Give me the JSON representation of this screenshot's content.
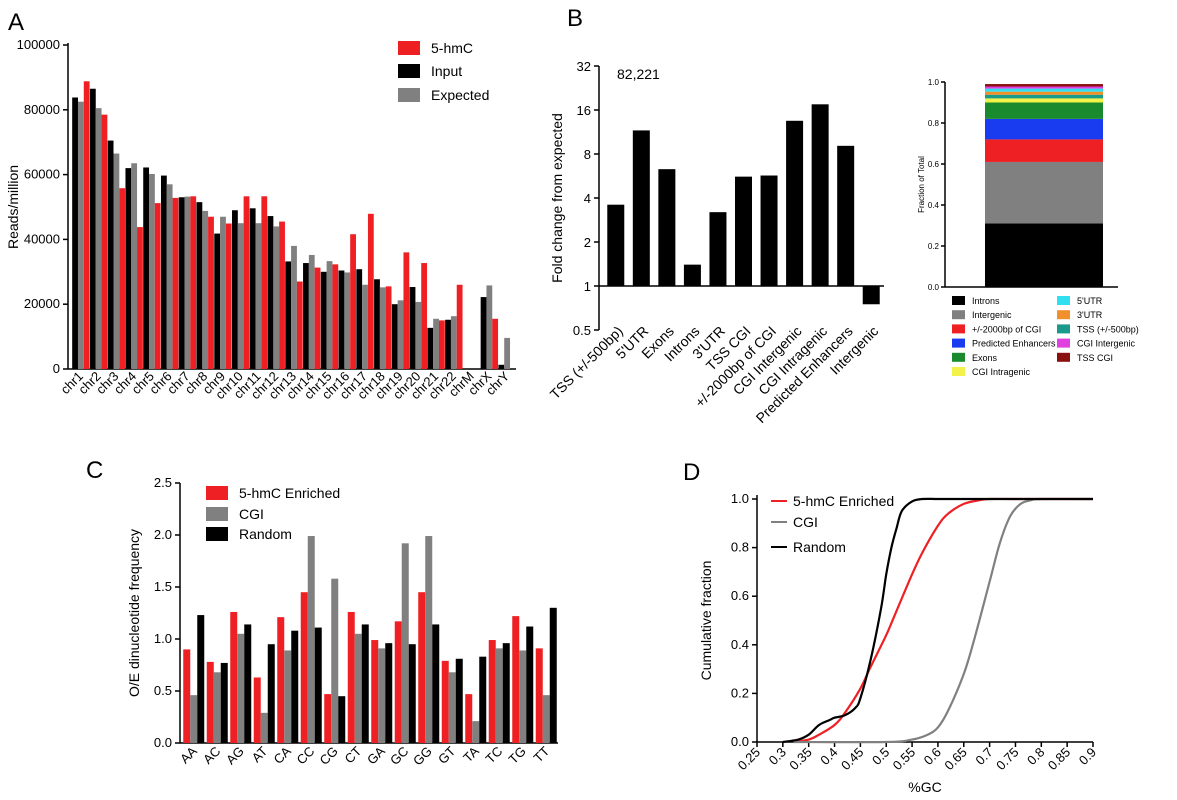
{
  "panel_letters": {
    "A": "A",
    "B": "B",
    "C": "C",
    "D": "D"
  },
  "colors": {
    "red": "#ee2024",
    "black": "#000000",
    "gray": "#808080"
  },
  "chart_data": [
    {
      "id": "A",
      "type": "bar",
      "ylabel": "Reads/million",
      "ylim": [
        0,
        100000
      ],
      "yticks": [
        "0",
        "20000",
        "40000",
        "60000",
        "80000",
        "100000"
      ],
      "categories": [
        "chr1",
        "chr2",
        "chr3",
        "chr4",
        "chr5",
        "chr6",
        "chr7",
        "chr8",
        "chr9",
        "chr10",
        "chr11",
        "chr12",
        "chr13",
        "chr14",
        "chr15",
        "chr16",
        "chr17",
        "chr18",
        "chr19",
        "chr20",
        "chr21",
        "chr22",
        "chrM",
        "chrX",
        "chrY"
      ],
      "series": [
        {
          "name": "Input",
          "color": "#000000",
          "values": [
            83800,
            86500,
            70500,
            62000,
            62200,
            59700,
            53000,
            51500,
            41800,
            49000,
            49600,
            47200,
            33200,
            32700,
            30000,
            30400,
            30800,
            27700,
            20000,
            25300,
            12700,
            15200,
            0,
            22200,
            1300
          ]
        },
        {
          "name": "Expected",
          "color": "#808080",
          "values": [
            82500,
            80500,
            66500,
            63500,
            60200,
            57000,
            53200,
            48800,
            47000,
            45000,
            45000,
            44000,
            38000,
            35200,
            33300,
            29800,
            26000,
            25200,
            21200,
            20700,
            15500,
            16300,
            0,
            25800,
            9600
          ]
        },
        {
          "name": "5-hmC",
          "color": "#ee2024",
          "values": [
            88800,
            78500,
            55800,
            43800,
            51200,
            52800,
            53300,
            47000,
            44900,
            53300,
            53300,
            45500,
            27000,
            31300,
            32300,
            41600,
            47900,
            25500,
            36000,
            32700,
            15000,
            26000,
            0,
            15500,
            0
          ]
        }
      ],
      "legend": [
        "5-hmC",
        "Input",
        "Expected"
      ],
      "legend_placement": "top-right"
    },
    {
      "id": "B-left",
      "type": "bar",
      "ylabel": "Fold change from expected",
      "yscale": "log2",
      "ylim": [
        0.5,
        32
      ],
      "yticks": [
        "0.5",
        "1",
        "2",
        "4",
        "8",
        "16",
        "32"
      ],
      "annotation": "82,221",
      "categories": [
        "TSS (+/-500bp)",
        "5'UTR",
        "Exons",
        "Introns",
        "3'UTR",
        "TSS CGI",
        "+/-2000bp of CGI",
        "CGI Intergenic",
        "CGI Intragenic",
        "Predicted Enhancers",
        "Intergenic"
      ],
      "values": [
        3.6,
        11.6,
        6.3,
        1.4,
        3.2,
        5.6,
        5.7,
        13.5,
        17.5,
        9.1,
        0.75
      ]
    },
    {
      "id": "B-right",
      "type": "bar",
      "subtype": "stacked",
      "ylabel": "Fraction of Total",
      "ylim": [
        0,
        1.0
      ],
      "yticks": [
        "0.0",
        "0.2",
        "0.4",
        "0.6",
        "0.8",
        "1.0"
      ],
      "segments": [
        {
          "name": "Introns",
          "color": "#000000",
          "value": 0.31
        },
        {
          "name": "Intergenic",
          "color": "#808080",
          "value": 0.3
        },
        {
          "name": "+/-2000bp of CGI",
          "color": "#ee2024",
          "value": 0.11
        },
        {
          "name": "Predicted Enhancers",
          "color": "#1a3cf0",
          "value": 0.1
        },
        {
          "name": "Exons",
          "color": "#1a8a2e",
          "value": 0.08
        },
        {
          "name": "CGI Intragenic",
          "color": "#f2f24a",
          "value": 0.02
        },
        {
          "name": "TSS (+/-500bp)",
          "color": "#1a9a8a",
          "value": 0.018
        },
        {
          "name": "3'UTR",
          "color": "#f0902a",
          "value": 0.015
        },
        {
          "name": "5'UTR",
          "color": "#30e0f0",
          "value": 0.015
        },
        {
          "name": "CGI Intergenic",
          "color": "#e040e0",
          "value": 0.01
        },
        {
          "name": "TSS CGI",
          "color": "#8a1010",
          "value": 0.012
        }
      ],
      "legend_left": [
        "Introns",
        "Intergenic",
        "+/-2000bp of CGI",
        "Predicted Enhancers",
        "Exons",
        "CGI Intragenic"
      ],
      "legend_right": [
        "5'UTR",
        "3'UTR",
        "TSS (+/-500bp)",
        "CGI Intergenic",
        "TSS CGI"
      ]
    },
    {
      "id": "C",
      "type": "bar",
      "ylabel": "O/E dinucleotide frequency",
      "ylim": [
        0,
        2.5
      ],
      "yticks": [
        "0.0",
        "0.5",
        "1.0",
        "1.5",
        "2.0",
        "2.5"
      ],
      "categories": [
        "AA",
        "AC",
        "AG",
        "AT",
        "CA",
        "CC",
        "CG",
        "CT",
        "GA",
        "GC",
        "GG",
        "GT",
        "TA",
        "TC",
        "TG",
        "TT"
      ],
      "series": [
        {
          "name": "5-hmC Enriched",
          "color": "#ee2024",
          "values": [
            0.9,
            0.78,
            1.26,
            0.63,
            1.21,
            1.45,
            0.47,
            1.26,
            0.99,
            1.17,
            1.45,
            0.79,
            0.47,
            0.99,
            1.22,
            0.91
          ]
        },
        {
          "name": "CGI",
          "color": "#808080",
          "values": [
            0.46,
            0.68,
            1.05,
            0.29,
            0.89,
            1.99,
            1.58,
            1.05,
            0.91,
            1.92,
            1.99,
            0.68,
            0.21,
            0.91,
            0.89,
            0.46
          ]
        },
        {
          "name": "Random",
          "color": "#000000",
          "values": [
            1.23,
            0.77,
            1.14,
            0.95,
            1.08,
            1.11,
            0.45,
            1.14,
            0.96,
            0.95,
            1.14,
            0.81,
            0.83,
            0.96,
            1.12,
            1.3
          ]
        }
      ],
      "legend": [
        "5-hmC Enriched",
        "CGI",
        "Random"
      ],
      "legend_placement": "top-left"
    },
    {
      "id": "D",
      "type": "line",
      "xlabel": "%GC",
      "ylabel": "Cumulative fraction",
      "xlim": [
        0.25,
        0.9
      ],
      "ylim": [
        0,
        1.0
      ],
      "xticks": [
        "0.25",
        "0.3",
        "0.35",
        "0.4",
        "0.45",
        "0.5",
        "0.55",
        "0.6",
        "0.65",
        "0.7",
        "0.75",
        "0.8",
        "0.85",
        "0.9"
      ],
      "yticks": [
        "0.0",
        "0.2",
        "0.4",
        "0.6",
        "0.8",
        "1.0"
      ],
      "series": [
        {
          "name": "5-hmC Enriched",
          "color": "#ee2024",
          "x": [
            0.32,
            0.35,
            0.37,
            0.4,
            0.42,
            0.45,
            0.47,
            0.5,
            0.52,
            0.55,
            0.57,
            0.6,
            0.62,
            0.65,
            0.68,
            0.7,
            0.75,
            0.9
          ],
          "y": [
            0.0,
            0.01,
            0.03,
            0.07,
            0.12,
            0.22,
            0.31,
            0.44,
            0.54,
            0.69,
            0.78,
            0.89,
            0.94,
            0.98,
            0.995,
            1.0,
            1.0,
            1.0
          ]
        },
        {
          "name": "CGI",
          "color": "#808080",
          "x": [
            0.32,
            0.5,
            0.55,
            0.58,
            0.6,
            0.62,
            0.65,
            0.67,
            0.7,
            0.72,
            0.74,
            0.76,
            0.78,
            0.8,
            0.9
          ],
          "y": [
            0.0,
            0.0,
            0.01,
            0.03,
            0.06,
            0.13,
            0.28,
            0.42,
            0.66,
            0.82,
            0.93,
            0.98,
            0.995,
            1.0,
            1.0
          ]
        },
        {
          "name": "Random",
          "color": "#000000",
          "x": [
            0.3,
            0.33,
            0.35,
            0.37,
            0.39,
            0.4,
            0.42,
            0.44,
            0.45,
            0.47,
            0.49,
            0.5,
            0.51,
            0.52,
            0.53,
            0.55,
            0.57,
            0.6,
            0.65,
            0.9
          ],
          "y": [
            0.0,
            0.01,
            0.03,
            0.07,
            0.09,
            0.1,
            0.11,
            0.14,
            0.18,
            0.34,
            0.55,
            0.69,
            0.8,
            0.88,
            0.95,
            0.99,
            1.0,
            1.0,
            1.0,
            1.0
          ]
        }
      ],
      "legend": [
        "5-hmC Enriched",
        "CGI",
        "Random"
      ],
      "legend_placement": "top-left"
    }
  ]
}
